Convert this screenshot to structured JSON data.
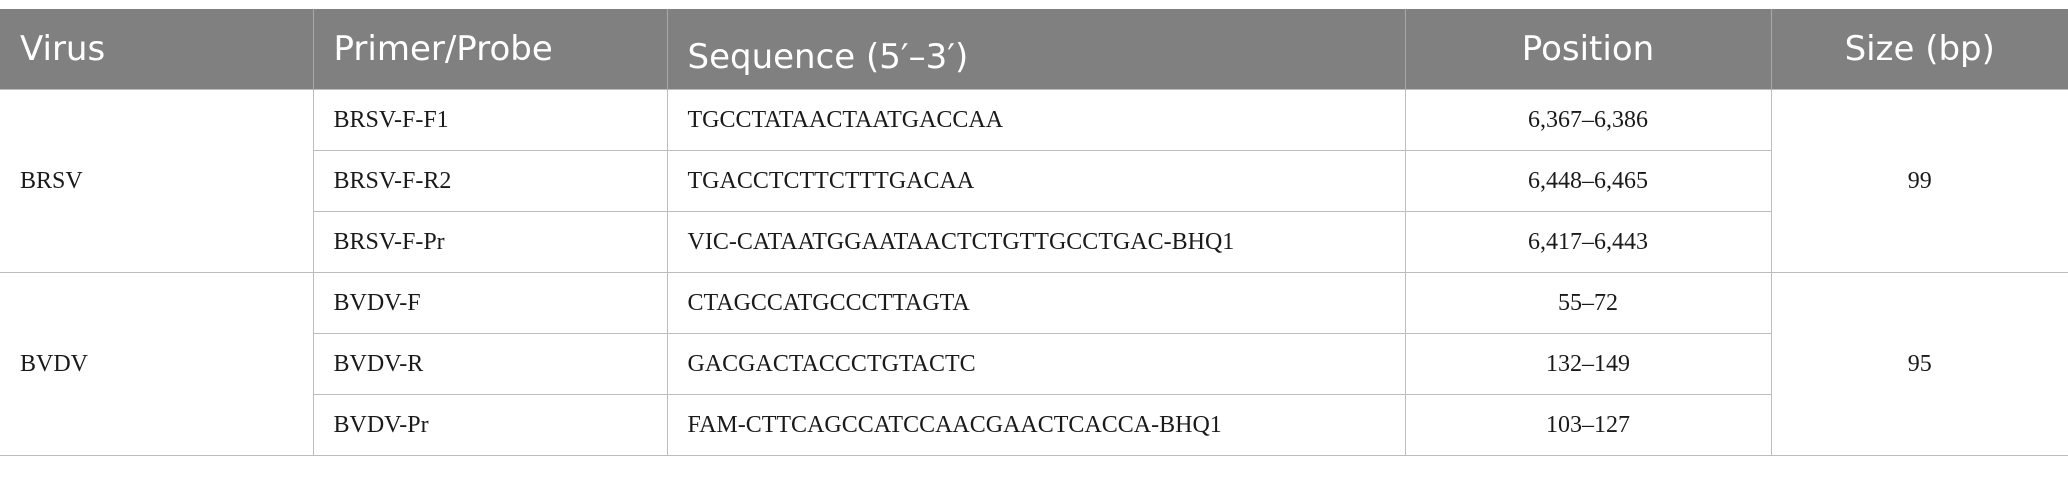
{
  "table": {
    "headers": [
      "Virus",
      "Primer/Probe",
      "Sequence (5′–3′)",
      "Position",
      "Size (bp)"
    ],
    "groups": [
      {
        "virus": "BRSV",
        "size": "99",
        "rows": [
          {
            "primer": "BRSV-F-F1",
            "sequence": "TGCCTATAACTAATGACCAA",
            "position": "6,367–6,386"
          },
          {
            "primer": "BRSV-F-R2",
            "sequence": "TGACCTCTTCTTTGACAA",
            "position": "6,448–6,465"
          },
          {
            "primer": "BRSV-F-Pr",
            "sequence": "VIC-CATAATGGAATAACTCTGTTGCCTGAC-BHQ1",
            "position": "6,417–6,443"
          }
        ]
      },
      {
        "virus": "BVDV",
        "size": "95",
        "rows": [
          {
            "primer": "BVDV-F",
            "sequence": "CTAGCCATGCCCTTAGTA",
            "position": "55–72"
          },
          {
            "primer": "BVDV-R",
            "sequence": "GACGACTACCCTGTACTC",
            "position": "132–149"
          },
          {
            "primer": "BVDV-Pr",
            "sequence": "FAM-CTTCAGCCATCCAACGAACTCACCA-BHQ1",
            "position": "103–127"
          }
        ]
      }
    ]
  }
}
